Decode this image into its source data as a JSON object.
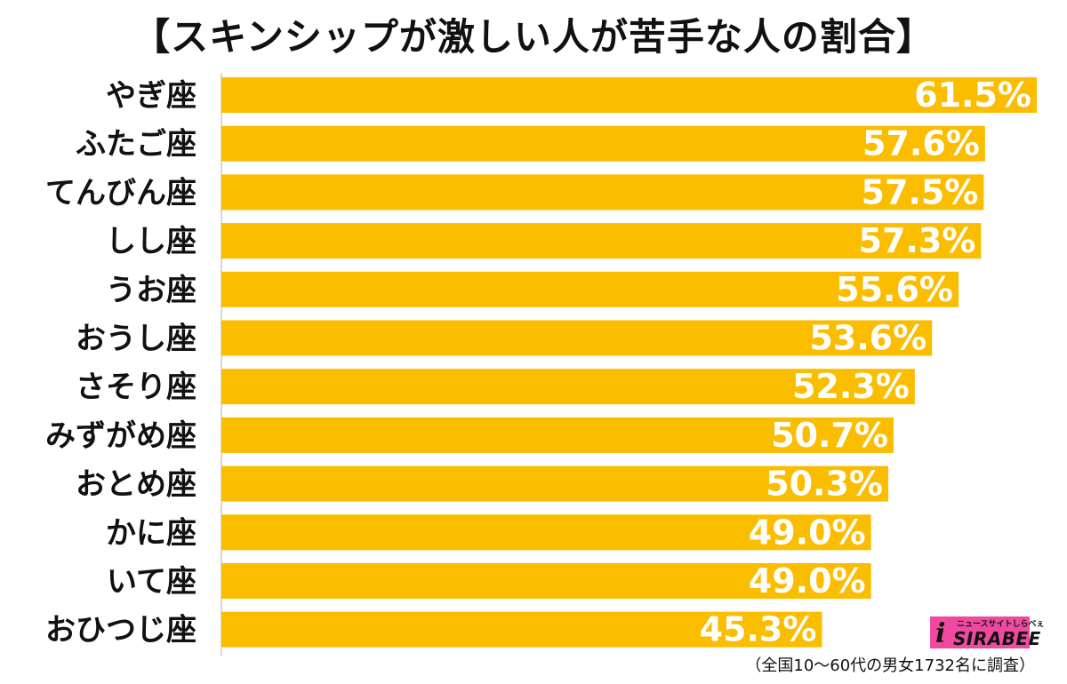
{
  "title": "【スキンシップが激しい人が苦手な人の割合】",
  "footnote": "（全国10〜60代の男女1732名に調査）",
  "logo": {
    "text": "SIRABEE",
    "subtext": "ニュースサイトしらべぇ"
  },
  "colors": {
    "bar": "#fbbd00",
    "value_text": "#ffffff",
    "axis": "#cccccc",
    "logo_bg": "#f04aa0"
  },
  "chart_data": {
    "type": "bar",
    "orientation": "horizontal",
    "title": "【スキンシップが激しい人が苦手な人の割合】",
    "categories": [
      "やぎ座",
      "ふたご座",
      "てんびん座",
      "しし座",
      "うお座",
      "おうし座",
      "さそり座",
      "みずがめ座",
      "おとめ座",
      "かに座",
      "いて座",
      "おひつじ座"
    ],
    "values": [
      61.5,
      57.6,
      57.5,
      57.3,
      55.6,
      53.6,
      52.3,
      50.7,
      50.3,
      49.0,
      49.0,
      45.3
    ],
    "value_labels": [
      "61.5%",
      "57.6%",
      "57.5%",
      "57.3%",
      "55.6%",
      "53.6%",
      "52.3%",
      "50.7%",
      "50.3%",
      "49.0%",
      "49.0%",
      "45.3%"
    ],
    "unit": "%",
    "xlim": [
      0,
      61.5
    ],
    "grid": false,
    "legend": "none"
  }
}
